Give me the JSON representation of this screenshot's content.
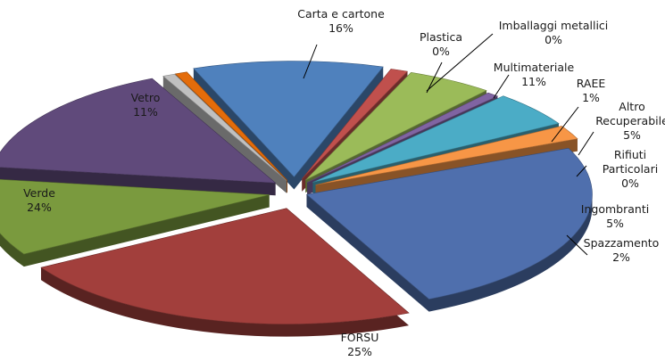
{
  "chart_data": {
    "type": "pie",
    "categories": [
      "Carta e cartone",
      "Imballaggi metallici",
      "Plastica",
      "Multimateriale",
      "RAEE",
      "Altro Recuperabile",
      "Rifiuti Particolari",
      "Ingombranti",
      "Spazzamento",
      "FORSU",
      "Verde",
      "Vetro"
    ],
    "values": [
      16,
      0,
      0,
      11,
      1,
      5,
      0,
      5,
      2,
      25,
      24,
      11
    ],
    "value_labels": [
      "16%",
      "0%",
      "0%",
      "11%",
      "1%",
      "5%",
      "0%",
      "5%",
      "2%",
      "25%",
      "24%",
      "11%"
    ],
    "label_lines": [
      [
        "Carta e cartone",
        "16%"
      ],
      [
        "Imballaggi metallici",
        "0%"
      ],
      [
        "Plastica",
        "0%"
      ],
      [
        "Multimateriale",
        "11%"
      ],
      [
        "RAEE",
        "1%"
      ],
      [
        "Altro",
        "Recuperabile",
        "5%"
      ],
      [
        "Rifiuti",
        "Particolari",
        "0%"
      ],
      [
        "Ingombranti",
        "5%"
      ],
      [
        "Spazzamento",
        "2%"
      ],
      [
        "FORSU",
        "25%"
      ],
      [
        "Verde",
        "24%"
      ],
      [
        "Vetro",
        "11%"
      ]
    ],
    "colors": [
      "#604a7b",
      "#c0c0c0",
      "#e46c0a",
      "#4f81bd",
      "#c0504d",
      "#9bbb59",
      "#8064a2",
      "#4bacc6",
      "#f79646",
      "#4f6fad",
      "#a23f3c",
      "#7a9a3e"
    ],
    "exploded": true,
    "three_d": true,
    "legend": "none",
    "title": ""
  }
}
